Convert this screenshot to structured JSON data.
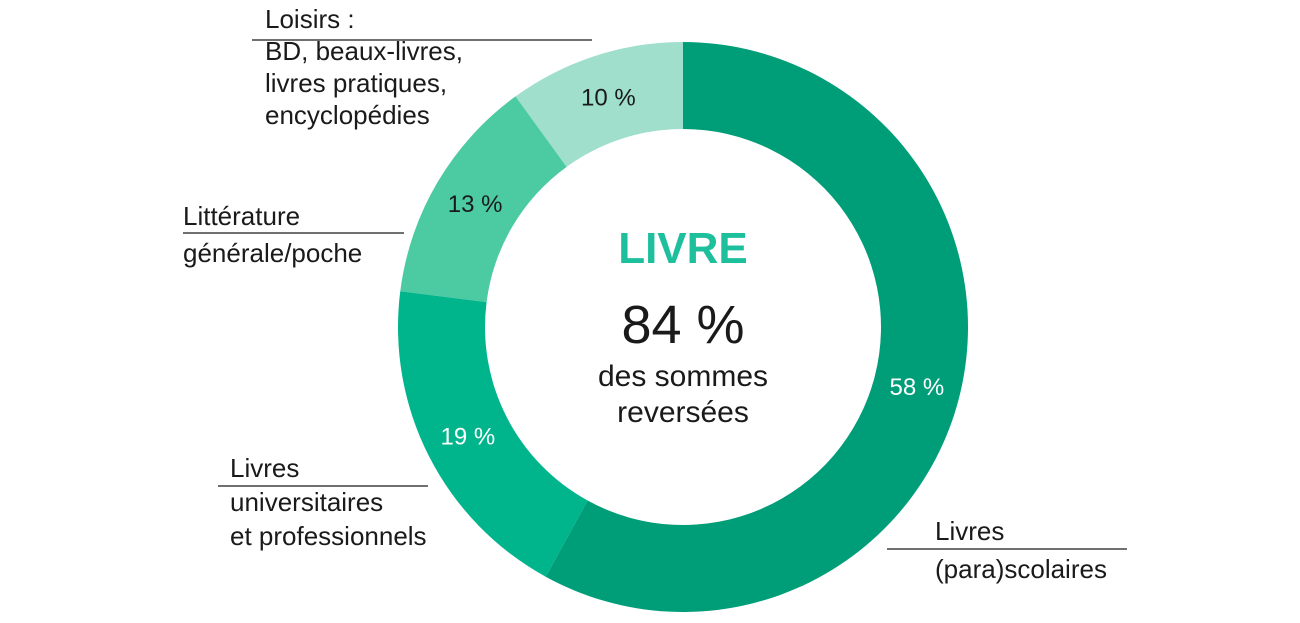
{
  "chart_data": {
    "type": "pie",
    "donut": true,
    "categories": [
      [
        "Livres",
        "(para)scolaires"
      ],
      [
        "Livres",
        "universitaires",
        "et professionnels"
      ],
      [
        "Littérature",
        "générale/poche"
      ],
      [
        "Loisirs :",
        "BD, beaux-livres,",
        "livres pratiques,",
        "encyclopédies"
      ]
    ],
    "values": [
      58,
      19,
      13,
      10
    ],
    "value_labels": [
      "58 %",
      "19 %",
      "13 %",
      "10 %"
    ],
    "colors": [
      "#009e78",
      "#00b58c",
      "#4ccba3",
      "#9fdfcc"
    ],
    "value_label_colors": [
      "#ffffff",
      "#ffffff",
      "#1a1a1a",
      "#1a1a1a"
    ],
    "center": {
      "title": "LIVRE",
      "value": "84 %",
      "caption": [
        "des sommes",
        "reversées"
      ]
    }
  }
}
